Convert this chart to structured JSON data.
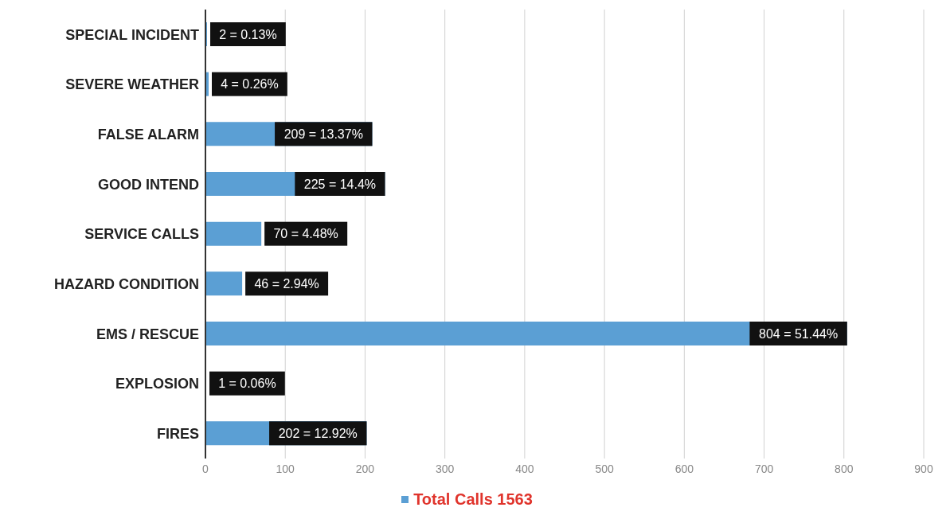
{
  "chart_data": {
    "type": "bar",
    "orientation": "horizontal",
    "categories": [
      "SPECIAL INCIDENT",
      "SEVERE WEATHER",
      "FALSE ALARM",
      "GOOD INTEND",
      "SERVICE CALLS",
      "HAZARD CONDITION",
      "EMS / RESCUE",
      "EXPLOSION",
      "FIRES"
    ],
    "series": [
      {
        "name": "Total Calls 1563",
        "color": "#5b9fd4",
        "values": [
          2,
          4,
          209,
          225,
          70,
          46,
          804,
          1,
          202
        ],
        "value_labels": [
          "2 = 0.13%",
          "4 = 0.26%",
          "209 = 13.37%",
          "225 = 14.4%",
          "70 = 4.48%",
          "46 = 2.94%",
          "804 = 51.44%",
          "1 = 0.06%",
          "202 = 12.92%"
        ]
      }
    ],
    "xlim": [
      0,
      900
    ],
    "xticks": [
      0,
      100,
      200,
      300,
      400,
      500,
      600,
      700,
      800,
      900
    ],
    "grid": "x",
    "legend": "bottom"
  }
}
